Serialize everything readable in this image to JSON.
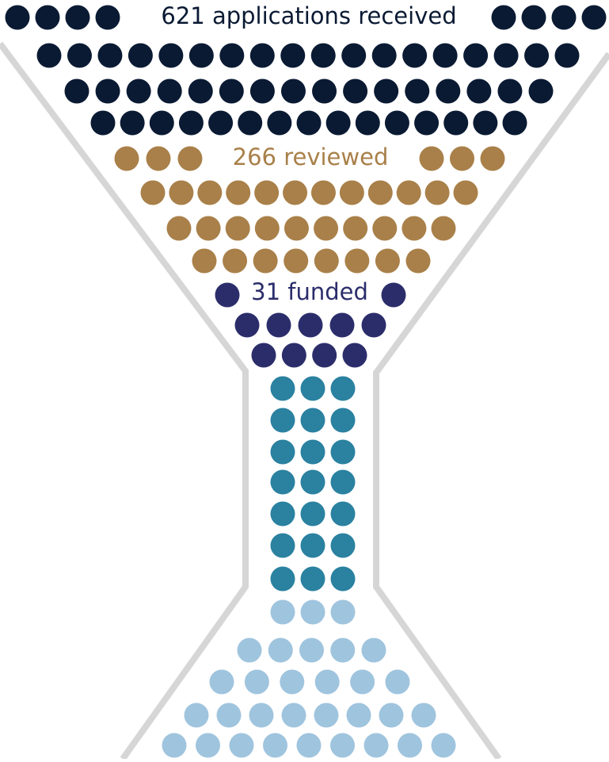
{
  "stages": [
    {
      "label": "621 applications received"
    },
    {
      "label": "266 reviewed"
    },
    {
      "label": "31 funded"
    }
  ]
}
